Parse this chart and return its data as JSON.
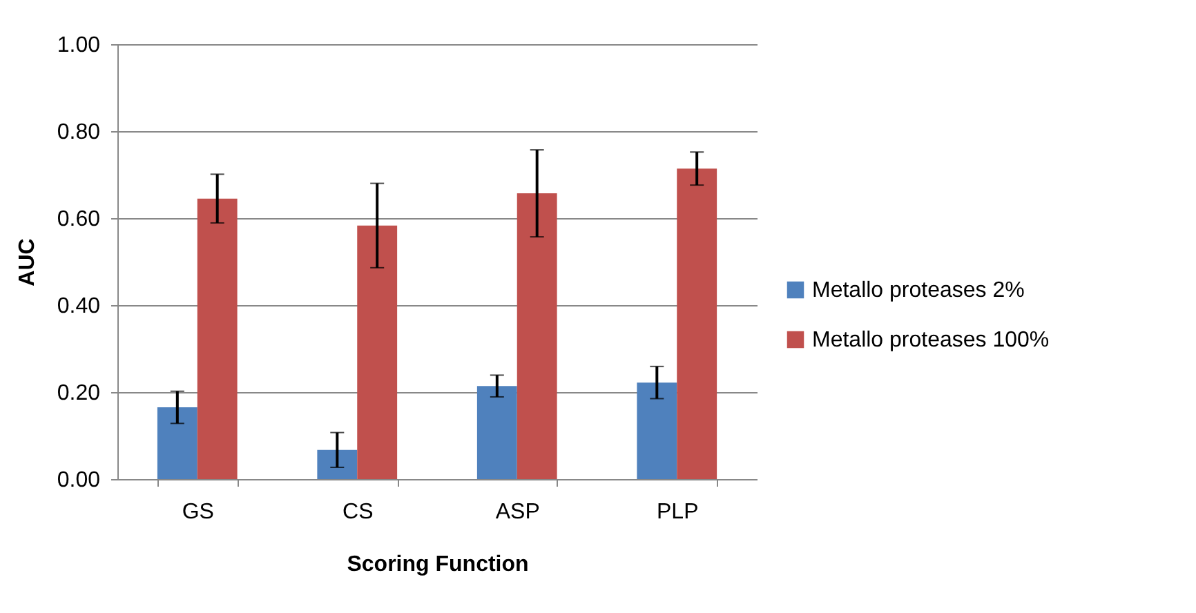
{
  "chart_data": {
    "type": "bar",
    "xlabel": "Scoring Function",
    "ylabel": "AUC",
    "categories": [
      "GS",
      "CS",
      "ASP",
      "PLP"
    ],
    "series": [
      {
        "name": "Metallo proteases 2%",
        "color": "#4f81bd",
        "values": [
          0.165,
          0.067,
          0.214,
          0.222
        ],
        "errors": [
          0.037,
          0.04,
          0.025,
          0.037
        ]
      },
      {
        "name": "Metallo proteases 100%",
        "color": "#c0504d",
        "values": [
          0.645,
          0.583,
          0.657,
          0.714
        ],
        "errors": [
          0.056,
          0.097,
          0.1,
          0.038
        ]
      }
    ],
    "ylim": [
      0,
      1
    ],
    "yticks": [
      {
        "value": 0,
        "label": "0.00"
      },
      {
        "value": 0.2,
        "label": "0.20"
      },
      {
        "value": 0.4,
        "label": "0.40"
      },
      {
        "value": 0.6,
        "label": "0.60"
      },
      {
        "value": 0.8,
        "label": "0.80"
      },
      {
        "value": 1,
        "label": "1.00"
      }
    ],
    "grid": "y",
    "legend": "right"
  }
}
